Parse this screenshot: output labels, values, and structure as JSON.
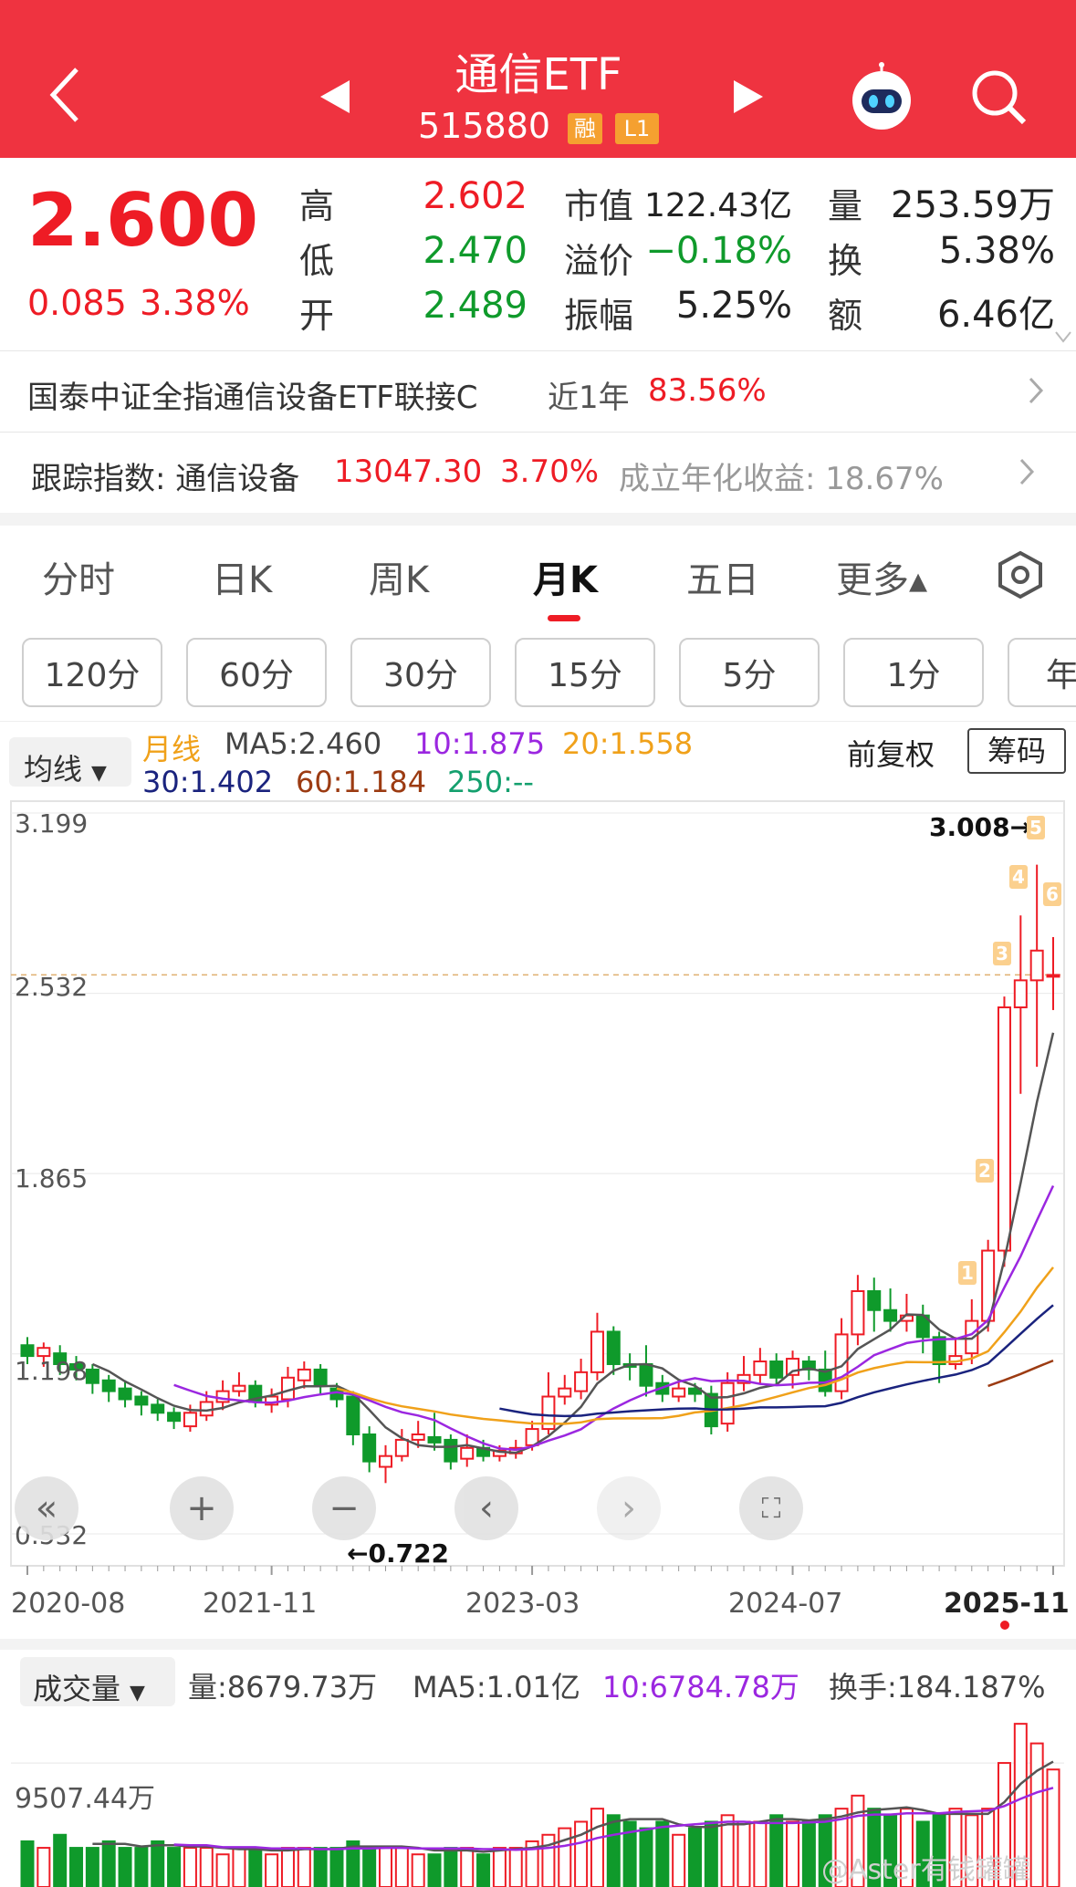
{
  "header": {
    "title": "通信ETF",
    "code": "515880",
    "badge1": "融",
    "badge2": "L1"
  },
  "quote": {
    "price": "2.600",
    "change": "0.085",
    "change_pct": "3.38%",
    "high_label": "高",
    "high": "2.602",
    "low_label": "低",
    "low": "2.470",
    "open_label": "开",
    "open": "2.489",
    "mcap_label": "市值",
    "mcap": "122.43亿",
    "premium_label": "溢价",
    "premium": "−0.18%",
    "amp_label": "振幅",
    "amp": "5.25%",
    "vol_label": "量",
    "vol": "253.59万",
    "turn_label": "换",
    "turn": "5.38%",
    "amt_label": "额",
    "amt": "6.46亿"
  },
  "fund_row": {
    "name": "国泰中证全指通信设备ETF联接C",
    "period": "近1年",
    "return": "83.56%"
  },
  "index_row": {
    "label": "跟踪指数: 通信设备",
    "value": "13047.30",
    "pct": "3.70%",
    "annual": "成立年化收益: 18.67%"
  },
  "tabs": [
    "分时",
    "日K",
    "周K",
    "月K",
    "五日",
    "更多▴"
  ],
  "periods": [
    "120分",
    "60分",
    "30分",
    "15分",
    "5分",
    "1分",
    "年"
  ],
  "ma": {
    "selector": "均线",
    "line_label": "月线",
    "ma5": "MA5:2.460",
    "ma10": "10:1.875",
    "ma20": "20:1.558",
    "ma30": "30:1.402",
    "ma60": "60:1.184",
    "ma250": "250:--",
    "adjust": "前复权",
    "chips": "筹码"
  },
  "colors": {
    "up": "#ee1c25",
    "down": "#0f9a2b",
    "ma5": "#555555",
    "ma10": "#9b27e0",
    "ma20": "#f0a11a",
    "ma30": "#1a237e",
    "ma60": "#9c3b12",
    "ma250": "#14a06e"
  },
  "y_labels": [
    "3.199",
    "2.532",
    "1.865",
    "1.198",
    "0.532"
  ],
  "x_labels": [
    "2020-08",
    "2021-11",
    "2023-03",
    "2024-07",
    "2025-11"
  ],
  "annotations": {
    "high": "3.008→",
    "low": "←0.722",
    "markers": [
      "1",
      "2",
      "3",
      "4",
      "5",
      "6"
    ]
  },
  "volume": {
    "selector": "成交量",
    "vol": "量:8679.73万",
    "ma5": "MA5:1.01亿",
    "ma10": "10:6784.78万",
    "turnover": "换手:184.187%",
    "scale": "9507.44万"
  },
  "watermark": "@Aster有钱罐罐",
  "chart_data": {
    "type": "candlestick",
    "title": "",
    "xlabel": "",
    "ylabel": "",
    "ylim": [
      0.532,
      3.199
    ],
    "x": [
      "2020-08",
      "2021-11",
      "2023-03",
      "2024-07",
      "2025-11"
    ],
    "candles": [
      [
        1.23,
        1.19,
        1.26,
        1.16
      ],
      [
        1.19,
        1.22,
        1.24,
        1.15
      ],
      [
        1.2,
        1.16,
        1.23,
        1.12
      ],
      [
        1.16,
        1.14,
        1.19,
        1.1
      ],
      [
        1.14,
        1.09,
        1.16,
        1.05
      ],
      [
        1.1,
        1.06,
        1.12,
        1.02
      ],
      [
        1.07,
        1.03,
        1.1,
        1.0
      ],
      [
        1.04,
        1.01,
        1.06,
        0.97
      ],
      [
        1.01,
        0.98,
        1.03,
        0.95
      ],
      [
        0.98,
        0.95,
        1.0,
        0.92
      ],
      [
        0.93,
        0.98,
        1.01,
        0.91
      ],
      [
        0.97,
        1.02,
        1.06,
        0.95
      ],
      [
        1.02,
        1.06,
        1.1,
        0.99
      ],
      [
        1.06,
        1.08,
        1.13,
        1.04
      ],
      [
        1.08,
        1.02,
        1.1,
        1.0
      ],
      [
        1.01,
        1.04,
        1.07,
        0.98
      ],
      [
        1.03,
        1.11,
        1.15,
        1.0
      ],
      [
        1.1,
        1.14,
        1.17,
        1.07
      ],
      [
        1.14,
        1.08,
        1.16,
        1.05
      ],
      [
        1.07,
        1.03,
        1.09,
        1.0
      ],
      [
        1.04,
        0.9,
        1.06,
        0.86
      ],
      [
        0.9,
        0.8,
        0.93,
        0.76
      ],
      [
        0.78,
        0.82,
        0.86,
        0.72
      ],
      [
        0.82,
        0.88,
        0.92,
        0.8
      ],
      [
        0.88,
        0.9,
        0.95,
        0.85
      ],
      [
        0.89,
        0.87,
        0.98,
        0.84
      ],
      [
        0.88,
        0.8,
        0.9,
        0.77
      ],
      [
        0.81,
        0.85,
        0.9,
        0.78
      ],
      [
        0.85,
        0.82,
        0.88,
        0.8
      ],
      [
        0.82,
        0.84,
        0.86,
        0.8
      ],
      [
        0.83,
        0.85,
        0.88,
        0.81
      ],
      [
        0.86,
        0.92,
        0.95,
        0.84
      ],
      [
        0.92,
        1.04,
        1.13,
        0.9
      ],
      [
        1.04,
        1.07,
        1.12,
        1.01
      ],
      [
        1.06,
        1.13,
        1.18,
        1.03
      ],
      [
        1.13,
        1.28,
        1.35,
        1.1
      ],
      [
        1.28,
        1.16,
        1.3,
        1.12
      ],
      [
        1.16,
        1.15,
        1.2,
        1.1
      ],
      [
        1.16,
        1.08,
        1.23,
        1.04
      ],
      [
        1.09,
        1.05,
        1.12,
        1.02
      ],
      [
        1.04,
        1.07,
        1.1,
        1.02
      ],
      [
        1.07,
        1.05,
        1.09,
        1.02
      ],
      [
        1.05,
        0.93,
        1.08,
        0.9
      ],
      [
        0.94,
        1.09,
        1.13,
        0.91
      ],
      [
        1.09,
        1.12,
        1.19,
        1.06
      ],
      [
        1.12,
        1.17,
        1.22,
        1.09
      ],
      [
        1.17,
        1.11,
        1.2,
        1.08
      ],
      [
        1.12,
        1.18,
        1.21,
        1.07
      ],
      [
        1.17,
        1.14,
        1.19,
        1.1
      ],
      [
        1.14,
        1.06,
        1.21,
        1.04
      ],
      [
        1.06,
        1.27,
        1.33,
        1.03
      ],
      [
        1.27,
        1.43,
        1.49,
        1.23
      ],
      [
        1.43,
        1.36,
        1.48,
        1.28
      ],
      [
        1.36,
        1.32,
        1.44,
        1.28
      ],
      [
        1.32,
        1.34,
        1.42,
        1.28
      ],
      [
        1.34,
        1.26,
        1.38,
        1.2
      ],
      [
        1.26,
        1.16,
        1.28,
        1.09
      ],
      [
        1.16,
        1.19,
        1.26,
        1.14
      ],
      [
        1.2,
        1.32,
        1.4,
        1.16
      ],
      [
        1.32,
        1.58,
        1.62,
        1.28
      ],
      [
        1.58,
        2.48,
        2.52,
        1.52
      ],
      [
        2.48,
        2.58,
        2.82,
        2.16
      ],
      [
        2.58,
        2.69,
        3.008,
        2.26
      ],
      [
        2.6,
        2.6,
        2.74,
        2.47
      ]
    ],
    "volume_values": [
      0.35,
      0.3,
      0.4,
      0.3,
      0.3,
      0.35,
      0.3,
      0.3,
      0.35,
      0.3,
      0.3,
      0.3,
      0.25,
      0.3,
      0.3,
      0.25,
      0.3,
      0.3,
      0.3,
      0.3,
      0.35,
      0.3,
      0.3,
      0.3,
      0.25,
      0.25,
      0.3,
      0.3,
      0.25,
      0.3,
      0.3,
      0.35,
      0.4,
      0.45,
      0.5,
      0.6,
      0.55,
      0.5,
      0.45,
      0.5,
      0.4,
      0.45,
      0.5,
      0.55,
      0.5,
      0.5,
      0.55,
      0.5,
      0.5,
      0.55,
      0.6,
      0.7,
      0.6,
      0.55,
      0.6,
      0.5,
      0.55,
      0.6,
      0.55,
      0.6,
      0.95,
      1.25,
      1.1,
      0.9
    ]
  }
}
